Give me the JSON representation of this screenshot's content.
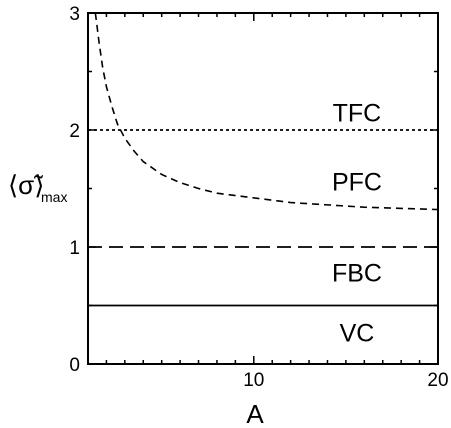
{
  "chart_data": {
    "type": "line",
    "xlabel": "A",
    "ylabel": {
      "main": "⟨σ̃⟩",
      "subscript": "max"
    },
    "xlim": [
      1,
      20
    ],
    "ylim": [
      0,
      3
    ],
    "x_ticks": [
      10,
      20
    ],
    "x_tick_labels": [
      "10",
      "20"
    ],
    "y_ticks": [
      0,
      1,
      2,
      3
    ],
    "y_tick_labels": [
      "0",
      "1",
      "2",
      "3"
    ],
    "grid": false,
    "series": [
      {
        "style": "dashed-curve",
        "color": "#000000",
        "x": [
          1.4,
          1.6,
          1.8,
          2.0,
          2.3,
          2.6,
          3.0,
          3.5,
          4.0,
          5.0,
          6.0,
          7.0,
          8.0,
          10.0,
          12.0,
          14.0,
          16.0,
          18.0,
          20.0
        ],
        "y": [
          3.03,
          2.75,
          2.53,
          2.37,
          2.2,
          2.05,
          1.93,
          1.82,
          1.73,
          1.62,
          1.55,
          1.5,
          1.46,
          1.42,
          1.38,
          1.36,
          1.34,
          1.33,
          1.32
        ]
      },
      {
        "style": "dotted-horizontal",
        "color": "#000000",
        "x": [
          1,
          20
        ],
        "y": [
          2,
          2
        ]
      },
      {
        "style": "long-dashed-horizontal",
        "color": "#000000",
        "x": [
          1,
          20
        ],
        "y": [
          1,
          1
        ]
      },
      {
        "style": "solid-horizontal",
        "color": "#000000",
        "x": [
          1,
          20
        ],
        "y": [
          0.5,
          0.5
        ]
      }
    ],
    "annotations": [
      {
        "text": "TFC",
        "x": 15.6,
        "y": 2.15
      },
      {
        "text": "PFC",
        "x": 15.6,
        "y": 1.56
      },
      {
        "text": "FBC",
        "x": 15.6,
        "y": 0.78
      },
      {
        "text": "VC",
        "x": 15.6,
        "y": 0.27
      }
    ]
  }
}
